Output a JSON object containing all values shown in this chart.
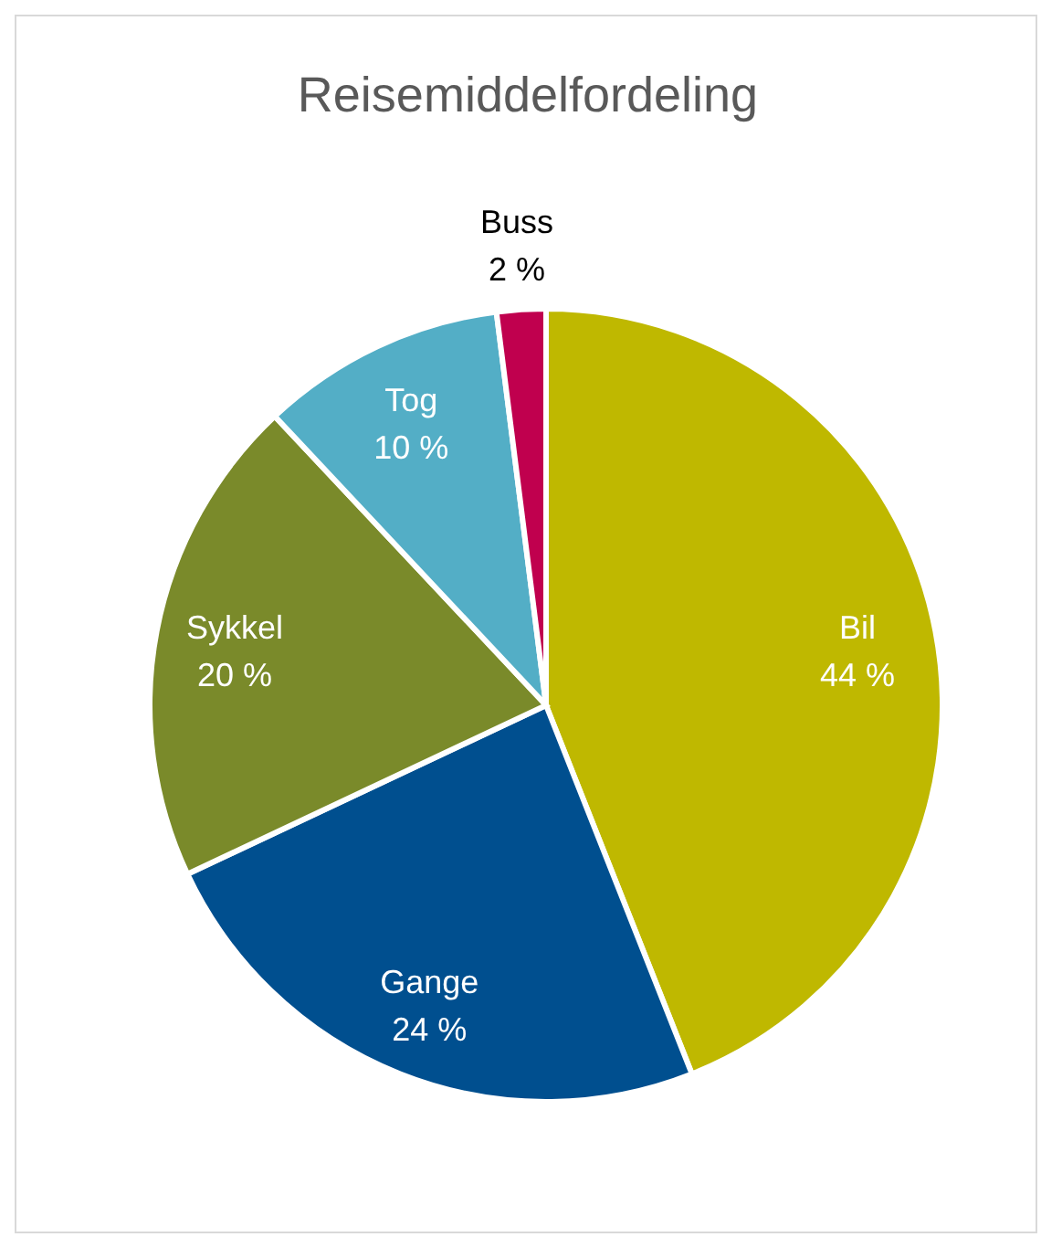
{
  "chart_data": {
    "type": "pie",
    "title": "Reisemiddelfordeling",
    "categories": [
      "Bil",
      "Gange",
      "Sykkel",
      "Tog",
      "Buss"
    ],
    "values": [
      44,
      24,
      20,
      10,
      2
    ],
    "colors": [
      "#bfb800",
      "#004f8f",
      "#7a8a2a",
      "#53aec6",
      "#c0004e"
    ],
    "value_labels": [
      "44 %",
      "24 %",
      "20 %",
      "10 %",
      "2 %"
    ],
    "legend": false
  }
}
